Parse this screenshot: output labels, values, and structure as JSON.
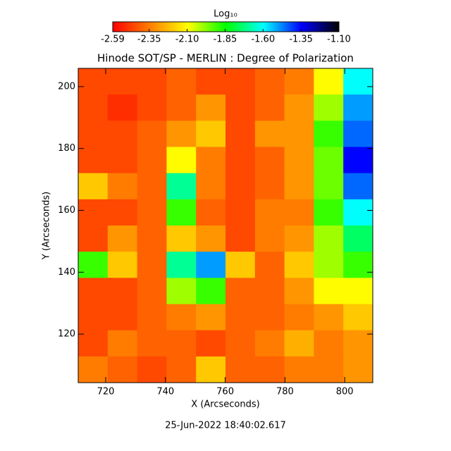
{
  "chart_data": {
    "type": "heatmap",
    "title": "Hinode SOT/SP - MERLIN : Degree of Polarization",
    "xlabel": "X (Arcseconds)",
    "ylabel": "Y (Arcseconds)",
    "footer": "25-Jun-2022 18:40:02.617",
    "colorbar_label": "Log₁₀",
    "clim": [
      -2.59,
      -1.1
    ],
    "colorbar_ticks": [
      -2.59,
      -2.35,
      {
        "value": -2.1,
        "label": "-2.10"
      },
      -1.85,
      {
        "value": -1.6,
        "label": "-1.60"
      },
      -1.35,
      {
        "value": -1.1,
        "label": "-1.10"
      }
    ],
    "colormap": [
      "#ff0000",
      "#ff8000",
      "#ffff00",
      "#00ff00",
      "#00ffff",
      "#0000ff",
      "#000000"
    ],
    "xlim": [
      710.8,
      809.4
    ],
    "ylim": [
      104.3,
      205.9
    ],
    "xticks": [
      720,
      740,
      760,
      780,
      800
    ],
    "yticks": [
      120,
      140,
      160,
      180,
      200
    ],
    "values": [
      [
        -2.45,
        -2.45,
        -2.45,
        -2.4,
        -2.45,
        -2.45,
        -2.4,
        -2.35,
        -2.1,
        -1.6
      ],
      [
        -2.45,
        -2.5,
        -2.45,
        -2.4,
        -2.3,
        -2.45,
        -2.4,
        -2.3,
        -2.0,
        -1.5
      ],
      [
        -2.45,
        -2.45,
        -2.4,
        -2.3,
        -2.2,
        -2.45,
        -2.3,
        -2.3,
        -1.9,
        -1.45
      ],
      [
        -2.45,
        -2.45,
        -2.4,
        -2.1,
        -2.35,
        -2.45,
        -2.4,
        -2.3,
        -1.95,
        -1.35
      ],
      [
        -2.2,
        -2.35,
        -2.4,
        -1.7,
        -2.35,
        -2.45,
        -2.4,
        -2.3,
        -1.95,
        -1.45
      ],
      [
        -2.45,
        -2.45,
        -2.4,
        -1.9,
        -2.4,
        -2.45,
        -2.35,
        -2.35,
        -1.9,
        -1.6
      ],
      [
        -2.45,
        -2.3,
        -2.4,
        -2.2,
        -2.3,
        -2.45,
        -2.35,
        -2.3,
        -2.0,
        -1.75
      ],
      [
        -1.9,
        -2.2,
        -2.4,
        -1.7,
        -1.5,
        -2.2,
        -2.4,
        -2.2,
        -2.0,
        -1.9
      ],
      [
        -2.45,
        -2.45,
        -2.4,
        -2.0,
        -1.9,
        -2.4,
        -2.4,
        -2.3,
        -2.1,
        -2.1
      ],
      [
        -2.45,
        -2.45,
        -2.4,
        -2.35,
        -2.3,
        -2.4,
        -2.4,
        -2.35,
        -2.3,
        -2.2
      ],
      [
        -2.45,
        -2.35,
        -2.4,
        -2.4,
        -2.45,
        -2.4,
        -2.35,
        -2.25,
        -2.35,
        -2.3
      ],
      [
        -2.35,
        -2.4,
        -2.45,
        -2.4,
        -2.2,
        -2.4,
        -2.4,
        -2.35,
        -2.35,
        -2.3
      ]
    ]
  }
}
